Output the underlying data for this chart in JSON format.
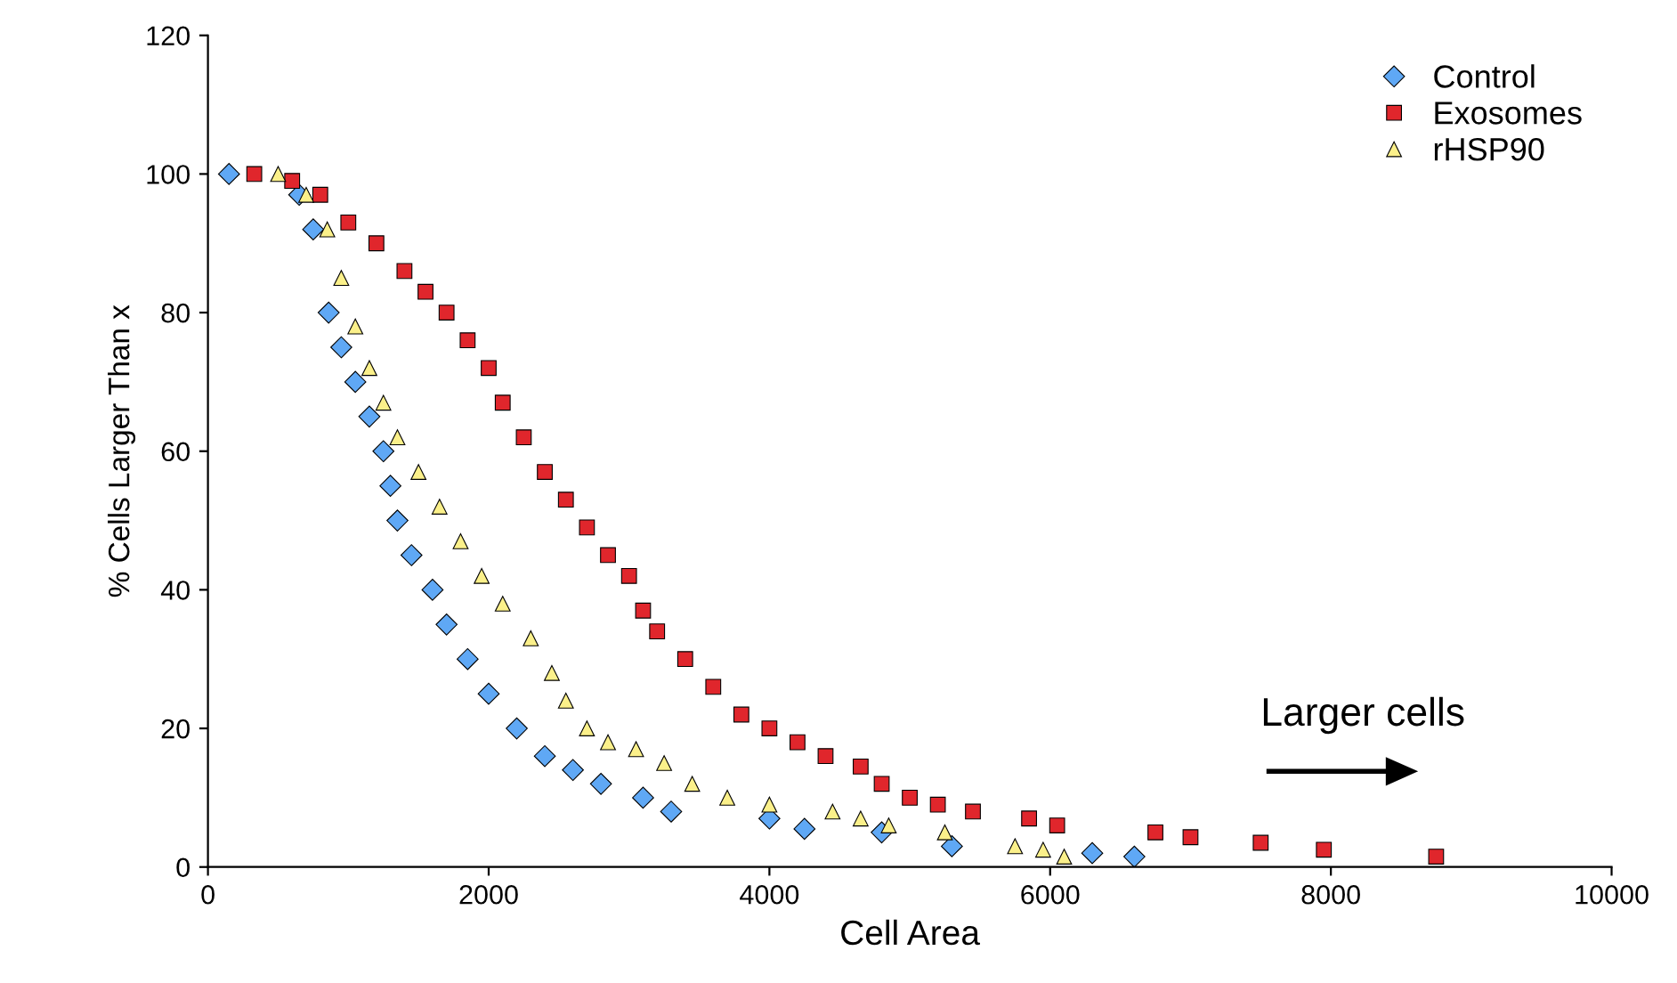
{
  "chart_data": {
    "type": "scatter",
    "xlabel": "Cell Area",
    "ylabel": "% Cells Larger Than x",
    "xlim": [
      0,
      10000
    ],
    "xticks": [
      0,
      2000,
      4000,
      6000,
      8000,
      10000
    ],
    "ylim": [
      0,
      120
    ],
    "yticks": [
      0,
      20,
      40,
      60,
      80,
      100,
      120
    ],
    "grid": false,
    "legend": "top right",
    "annotations": [
      "Larger cells"
    ],
    "series": [
      {
        "name": "Control",
        "color": "#5fa8f5",
        "marker": "diamond",
        "x": [
          150,
          650,
          750,
          860,
          950,
          1050,
          1150,
          1250,
          1300,
          1350,
          1450,
          1600,
          1700,
          1850,
          2000,
          2200,
          2400,
          2600,
          2800,
          3100,
          3300,
          4000,
          4250,
          4800,
          5300,
          6300,
          6600
        ],
        "values": [
          100,
          97,
          92,
          80,
          75,
          70,
          65,
          60,
          55,
          50,
          45,
          40,
          35,
          30,
          25,
          20,
          16,
          14,
          12,
          10,
          8,
          7,
          5.5,
          5,
          3,
          2,
          1.5
        ]
      },
      {
        "name": "Exosomes",
        "color": "#e0262c",
        "marker": "square",
        "x": [
          330,
          600,
          800,
          1000,
          1200,
          1400,
          1550,
          1700,
          1850,
          2000,
          2100,
          2250,
          2400,
          2550,
          2700,
          2850,
          3000,
          3100,
          3200,
          3400,
          3600,
          3800,
          4000,
          4200,
          4400,
          4650,
          4800,
          5000,
          5200,
          5450,
          5850,
          6050,
          6750,
          7000,
          7500,
          7950,
          8750
        ],
        "values": [
          100,
          99,
          97,
          93,
          90,
          86,
          83,
          80,
          76,
          72,
          67,
          62,
          57,
          53,
          49,
          45,
          42,
          37,
          34,
          30,
          26,
          22,
          20,
          18,
          16,
          14.5,
          12,
          10,
          9,
          8,
          7,
          6,
          5,
          4.3,
          3.5,
          2.5,
          1.5
        ]
      },
      {
        "name": "rHSP90",
        "color": "#fbf08a",
        "marker": "triangle",
        "x": [
          500,
          700,
          850,
          950,
          1050,
          1150,
          1250,
          1350,
          1500,
          1650,
          1800,
          1950,
          2100,
          2300,
          2450,
          2550,
          2700,
          2850,
          3050,
          3250,
          3450,
          3700,
          4000,
          4450,
          4650,
          4850,
          5250,
          5750,
          5950,
          6100
        ],
        "values": [
          100,
          97,
          92,
          85,
          78,
          72,
          67,
          62,
          57,
          52,
          47,
          42,
          38,
          33,
          28,
          24,
          20,
          18,
          17,
          15,
          12,
          10,
          9,
          8,
          7,
          6,
          5,
          3,
          2.5,
          1.5
        ]
      }
    ]
  }
}
